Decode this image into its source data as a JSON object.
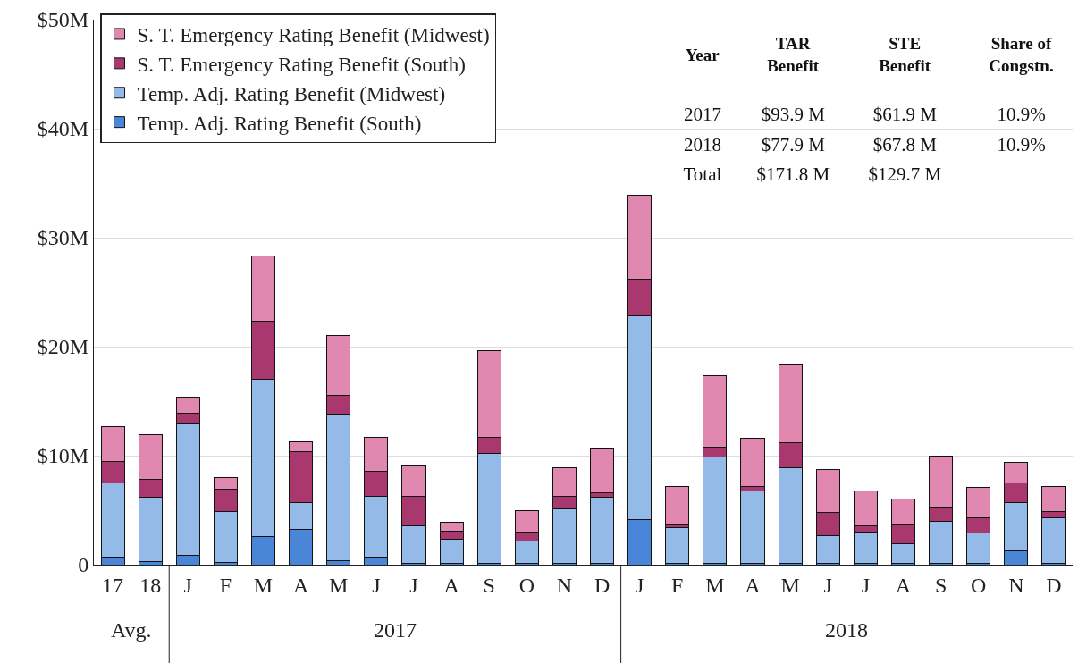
{
  "chart_data": {
    "type": "bar",
    "stacked": true,
    "categories": [
      "17",
      "18",
      "J",
      "F",
      "M",
      "A",
      "M",
      "J",
      "J",
      "A",
      "S",
      "O",
      "N",
      "D",
      "J",
      "F",
      "M",
      "A",
      "M",
      "J",
      "J",
      "A",
      "S",
      "O",
      "N",
      "D"
    ],
    "series": [
      {
        "name": "Temp. Adj. Rating Benefit (South)",
        "color": "#4a86d8",
        "values": [
          0.7,
          0.3,
          0.9,
          0.2,
          2.6,
          3.2,
          0.4,
          0.7,
          0.1,
          0.1,
          0.1,
          0.1,
          0.1,
          0.1,
          4.1,
          0.1,
          0.1,
          0.1,
          0.1,
          0.1,
          0.1,
          0.1,
          0.1,
          0.1,
          1.3,
          0.1
        ]
      },
      {
        "name": "Temp. Adj. Rating Benefit (Midwest)",
        "color": "#94bbe8",
        "values": [
          6.8,
          5.9,
          12.1,
          4.7,
          14.4,
          2.5,
          13.4,
          5.6,
          3.5,
          2.2,
          10.1,
          2.1,
          5.0,
          6.1,
          18.7,
          3.3,
          9.8,
          6.7,
          8.8,
          2.6,
          2.9,
          1.8,
          3.9,
          2.8,
          4.4,
          4.2
        ]
      },
      {
        "name": "S. T. Emergency Rating Benefit (South)",
        "color": "#a8386e",
        "values": [
          2.0,
          1.6,
          0.9,
          2.0,
          5.3,
          4.7,
          1.7,
          2.3,
          2.7,
          0.8,
          1.5,
          0.8,
          1.2,
          0.4,
          3.4,
          0.3,
          0.9,
          0.4,
          2.3,
          2.1,
          0.6,
          1.8,
          1.3,
          1.4,
          1.8,
          0.6
        ]
      },
      {
        "name": "S. T. Emergency Rating Benefit (Midwest)",
        "color": "#e088b0",
        "values": [
          3.2,
          4.1,
          1.5,
          1.1,
          6.0,
          0.9,
          5.5,
          3.1,
          2.8,
          0.8,
          7.9,
          2.0,
          2.6,
          4.1,
          7.7,
          3.5,
          6.5,
          4.4,
          7.2,
          3.9,
          3.2,
          2.3,
          4.7,
          2.8,
          1.9,
          2.3
        ]
      }
    ],
    "ylim": [
      0,
      50
    ],
    "yticks": [
      {
        "value": 0,
        "label": "0"
      },
      {
        "value": 10,
        "label": "$10M"
      },
      {
        "value": 20,
        "label": "$20M"
      },
      {
        "value": 30,
        "label": "$30M"
      },
      {
        "value": 40,
        "label": "$40M"
      },
      {
        "value": 50,
        "label": "$50M"
      }
    ],
    "grid": "y",
    "legend": "top left",
    "annotations": [
      "Avg.",
      "2017",
      "2018",
      "Year",
      "TAR\nBenefit",
      "STE\nBenefit",
      "Share of\nCongstn.",
      "2017",
      "$93.9 M",
      "$61.9 M",
      "10.9%",
      "2018",
      "$77.9 M",
      "$67.8 M",
      "10.9%",
      "Total",
      "$171.8 M",
      "$129.7 M"
    ]
  }
}
